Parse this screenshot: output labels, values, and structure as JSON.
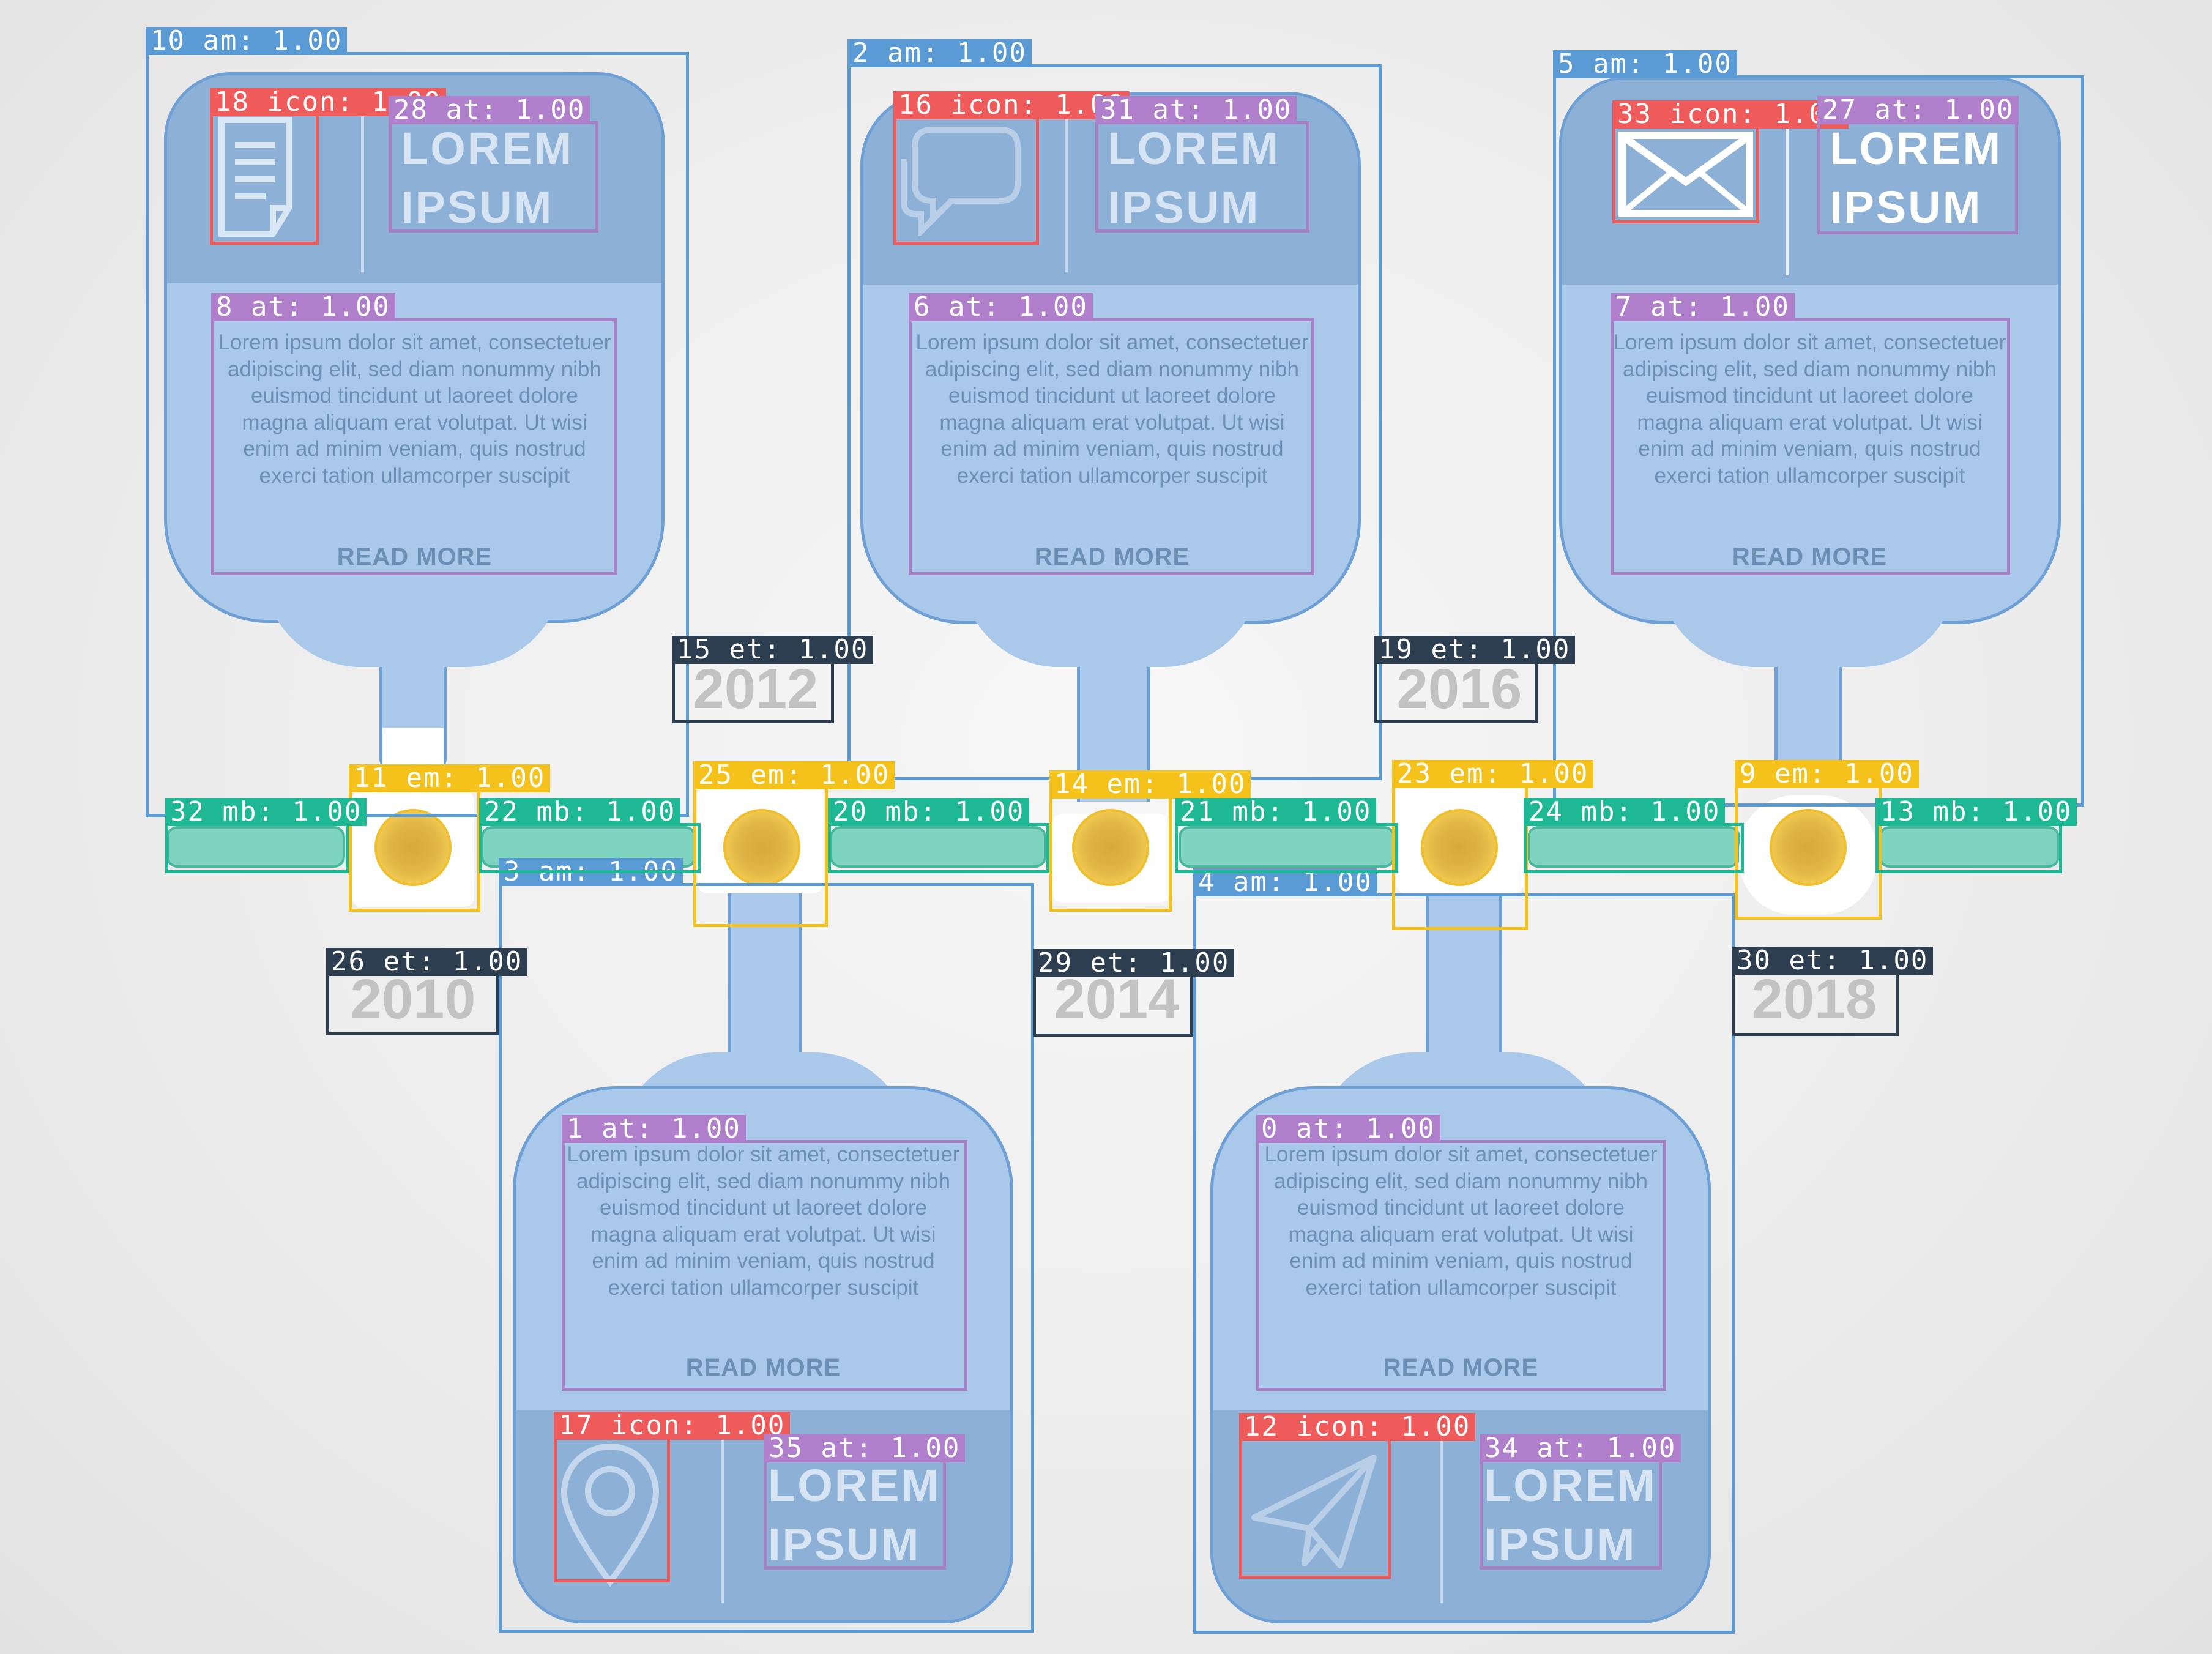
{
  "cards": [
    {
      "id": "2010",
      "title": [
        "LOREM",
        "IPSUM"
      ],
      "icon": "document-icon"
    },
    {
      "id": "2012",
      "title": [
        "LOREM",
        "IPSUM"
      ],
      "icon": "location-pin-icon"
    },
    {
      "id": "2014",
      "title": [
        "LOREM",
        "IPSUM"
      ],
      "icon": "chat-bubbles-icon"
    },
    {
      "id": "2016",
      "title": [
        "LOREM",
        "IPSUM"
      ],
      "icon": "paper-plane-icon"
    },
    {
      "id": "2018",
      "title": [
        "LOREM",
        "IPSUM"
      ],
      "icon": "envelope-icon"
    }
  ],
  "card_text": "Lorem ipsum dolor sit amet, consectetuer adipiscing elit, sed diam nonummy nibh euismod tincidunt ut laoreet dolore magna aliquam erat volutpat. Ut wisi enim ad minim veniam, quis nostrud exerci tation ullamcorper suscipit",
  "read_more": "READ MORE",
  "years": [
    "2010",
    "2012",
    "2014",
    "2016",
    "2018"
  ],
  "detections": {
    "d10": "10 am: 1.00",
    "d2": "2 am: 1.00",
    "d5": "5 am: 1.00",
    "d3": "3 am: 1.00",
    "d4": "4 am: 1.00",
    "d18": "18 icon: 1.00",
    "d16": "16 icon: 1.00",
    "d33": "33 icon: 1.00",
    "d17": "17 icon: 1.00",
    "d12": "12 icon: 1.00",
    "d28": "28 at: 1.00",
    "d31": "31 at: 1.00",
    "d27": "27 at: 1.00",
    "d35": "35 at: 1.00",
    "d34": "34 at: 1.00",
    "d8": "8 at: 1.00",
    "d6": "6 at: 1.00",
    "d7": "7 at: 1.00",
    "d1": "1 at: 1.00",
    "d0": "0 at: 1.00",
    "d15": "15 et: 1.00",
    "d19": "19 et: 1.00",
    "d26": "26 et: 1.00",
    "d29": "29 et: 1.00",
    "d30": "30 et: 1.00",
    "d11": "11 em: 1.00",
    "d25": "25 em: 1.00",
    "d14": "14 em: 1.00",
    "d23": "23 em: 1.00",
    "d9": "9 em: 1.00",
    "d32": "32 mb: 1.00",
    "d22": "22 mb: 1.00",
    "d20": "20 mb: 1.00",
    "d21": "21 mb: 1.00",
    "d24": "24 mb: 1.00",
    "d13": "13 mb: 1.00"
  }
}
